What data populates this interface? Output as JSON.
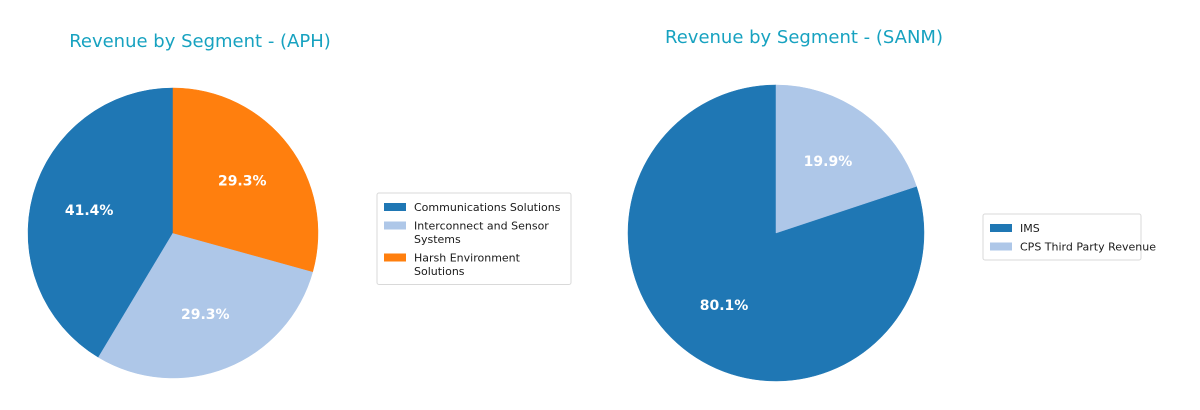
{
  "colors": {
    "title": "#17a2c0",
    "blue": "#1f77b4",
    "light_blue": "#aec7e8",
    "orange": "#ff7f0e"
  },
  "chart_data": [
    {
      "type": "pie",
      "title": "Revenue by Segment - (APH)",
      "slices": [
        {
          "label": "Communications Solutions",
          "legend_lines": [
            "Communications Solutions"
          ],
          "value": 41.4,
          "pct_label": "41.4%",
          "color": "#1f77b4"
        },
        {
          "label": "Interconnect and Sensor Systems",
          "legend_lines": [
            "Interconnect and Sensor",
            "Systems"
          ],
          "value": 29.3,
          "pct_label": "29.3%",
          "color": "#aec7e8"
        },
        {
          "label": "Harsh Environment Solutions",
          "legend_lines": [
            "Harsh Environment",
            "Solutions"
          ],
          "value": 29.3,
          "pct_label": "29.3%",
          "color": "#ff7f0e"
        }
      ],
      "start_angle_deg": 90,
      "direction": "counterclockwise",
      "legend_position": "right"
    },
    {
      "type": "pie",
      "title": "Revenue by Segment - (SANM)",
      "slices": [
        {
          "label": "IMS",
          "legend_lines": [
            "IMS"
          ],
          "value": 80.1,
          "pct_label": "80.1%",
          "color": "#1f77b4"
        },
        {
          "label": "CPS Third Party Revenue",
          "legend_lines": [
            "CPS Third Party Revenue"
          ],
          "value": 19.9,
          "pct_label": "19.9%",
          "color": "#aec7e8"
        }
      ],
      "start_angle_deg": 90,
      "direction": "counterclockwise",
      "legend_position": "right"
    }
  ]
}
